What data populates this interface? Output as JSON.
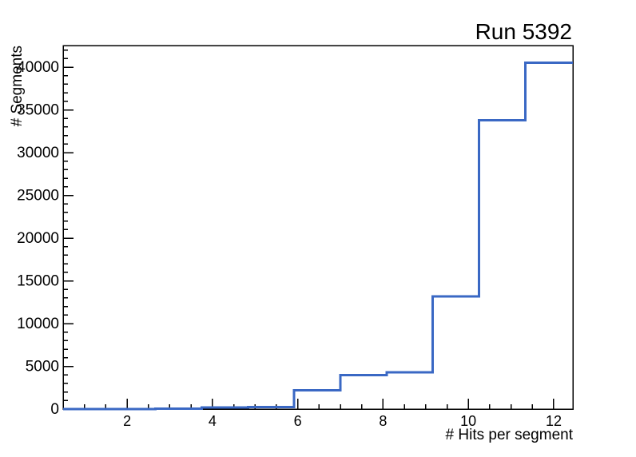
{
  "window": {
    "background": "#ffffff"
  },
  "chart_data": {
    "type": "step-histogram",
    "title": "Run 5392",
    "xlabel": "# Hits per segment",
    "ylabel": "# Segments",
    "xlim": [
      0.5,
      12.45
    ],
    "ylim": [
      0,
      42525
    ],
    "x_major_ticks": [
      2,
      4,
      6,
      8,
      10,
      12
    ],
    "x_minor_step": 0.5,
    "y_major_ticks": [
      0,
      5000,
      10000,
      15000,
      20000,
      25000,
      30000,
      35000,
      40000
    ],
    "y_minor_step": 1000,
    "grid": false,
    "legend": "none",
    "bin_edges": [
      0.5,
      1.583,
      2.667,
      3.75,
      4.833,
      5.917,
      7.0,
      8.083,
      9.167,
      10.25,
      11.333,
      12.45
    ],
    "values": [
      10,
      15,
      30,
      180,
      220,
      2200,
      3950,
      4300,
      13200,
      33800,
      40500
    ],
    "line_color": "#3a68c4",
    "axis_color": "#000000"
  }
}
